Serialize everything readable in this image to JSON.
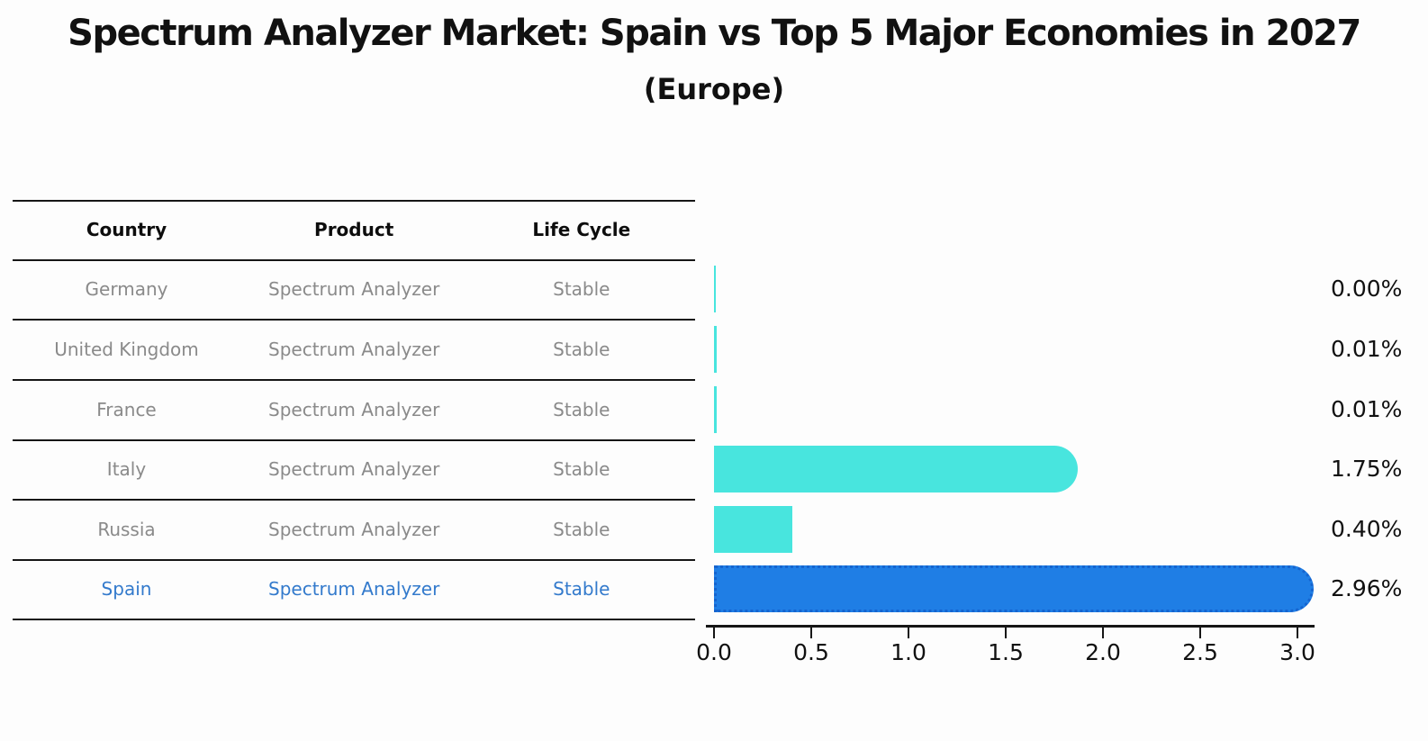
{
  "title": "Spectrum Analyzer Market: Spain vs Top 5 Major Economies in 2027",
  "subtitle": "(Europe)",
  "table": {
    "headers": [
      "Country",
      "Product",
      "Life Cycle"
    ],
    "rows": [
      {
        "country": "Germany",
        "product": "Spectrum Analyzer",
        "life_cycle": "Stable",
        "highlight": false
      },
      {
        "country": "United Kingdom",
        "product": "Spectrum Analyzer",
        "life_cycle": "Stable",
        "highlight": false
      },
      {
        "country": "France",
        "product": "Spectrum Analyzer",
        "life_cycle": "Stable",
        "highlight": false
      },
      {
        "country": "Italy",
        "product": "Spectrum Analyzer",
        "life_cycle": "Stable",
        "highlight": false
      },
      {
        "country": "Russia",
        "product": "Spectrum Analyzer",
        "life_cycle": "Stable",
        "highlight": false
      },
      {
        "country": "Spain",
        "product": "Spectrum Analyzer",
        "life_cycle": "Stable",
        "highlight": true
      }
    ]
  },
  "chart_data": {
    "type": "bar",
    "orientation": "horizontal",
    "title": "Spectrum Analyzer Market: Spain vs Top 5 Major Economies in 2027",
    "subtitle": "(Europe)",
    "categories": [
      "Germany",
      "United Kingdom",
      "France",
      "Italy",
      "Russia",
      "Spain"
    ],
    "values": [
      0.0,
      0.01,
      0.01,
      1.75,
      0.4,
      2.96
    ],
    "value_labels": [
      "0.00%",
      "0.01%",
      "0.01%",
      "1.75%",
      "0.40%",
      "2.96%"
    ],
    "highlight_category": "Spain",
    "x_tick_labels": [
      "0.0",
      "0.5",
      "1.0",
      "1.5",
      "2.0",
      "2.5",
      "3.0"
    ],
    "x_tick_values": [
      0.0,
      0.5,
      1.0,
      1.5,
      2.0,
      2.5,
      3.0
    ],
    "xlim": [
      0,
      3.1
    ],
    "grid": false,
    "legend": "none",
    "colors": {
      "bar_default": "#48e5de",
      "bar_highlight": "#1f7ee5",
      "bar_highlight_border": "#1564cf",
      "highlight_text": "#337acc",
      "row_text": "#8a8a8a",
      "header_text": "#0d0d0d",
      "axis_text": "#111111"
    }
  }
}
